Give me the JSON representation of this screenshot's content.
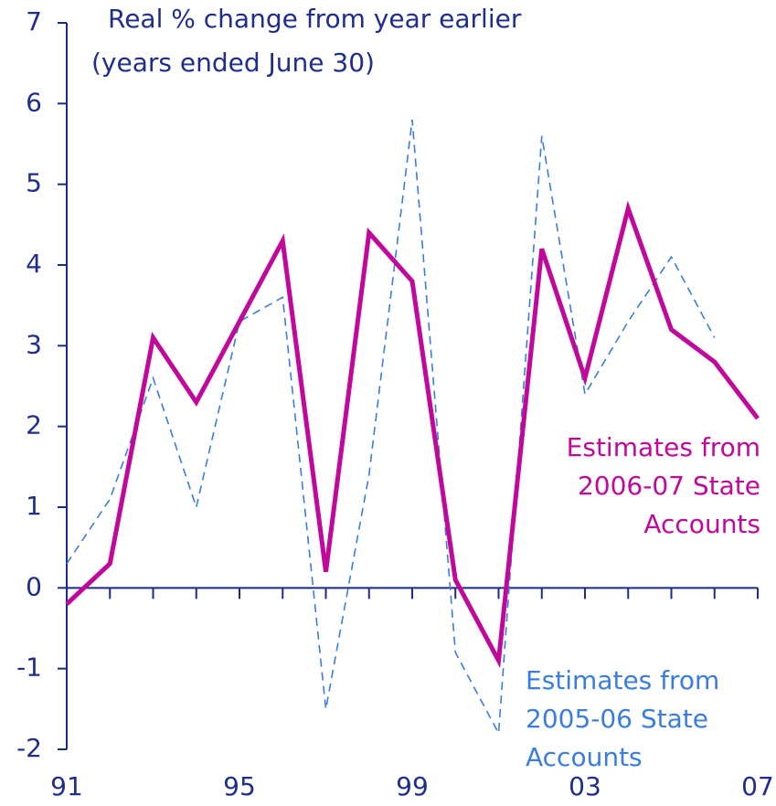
{
  "chart_data": {
    "type": "line",
    "title": "Real % change from year earlier",
    "subtitle": "(years ended June 30)",
    "categories": [
      "91",
      null,
      null,
      null,
      "95",
      null,
      null,
      null,
      "99",
      null,
      null,
      null,
      "03",
      null,
      null,
      null,
      "07"
    ],
    "series": [
      {
        "name": "Estimates from 2006-07 State Accounts",
        "color": "#c0089a",
        "dashed": false,
        "values": [
          -0.2,
          0.3,
          3.1,
          2.3,
          3.3,
          4.3,
          0.2,
          4.4,
          3.8,
          0.1,
          -0.9,
          4.2,
          2.6,
          4.7,
          3.2,
          2.8,
          2.1
        ]
      },
      {
        "name": "Estimates from 2005-06 State Accounts",
        "color": "#3a7de0",
        "dashed": true,
        "values": [
          0.3,
          1.1,
          2.6,
          1.0,
          3.3,
          3.6,
          -1.5,
          1.4,
          5.8,
          -0.8,
          -1.8,
          5.6,
          2.4,
          3.3,
          4.1,
          3.1,
          null
        ]
      }
    ],
    "ylim": [
      -2,
      7
    ],
    "yticks": [
      -2,
      -1,
      0,
      1,
      2,
      3,
      4,
      5,
      6,
      7
    ],
    "grid": false
  }
}
